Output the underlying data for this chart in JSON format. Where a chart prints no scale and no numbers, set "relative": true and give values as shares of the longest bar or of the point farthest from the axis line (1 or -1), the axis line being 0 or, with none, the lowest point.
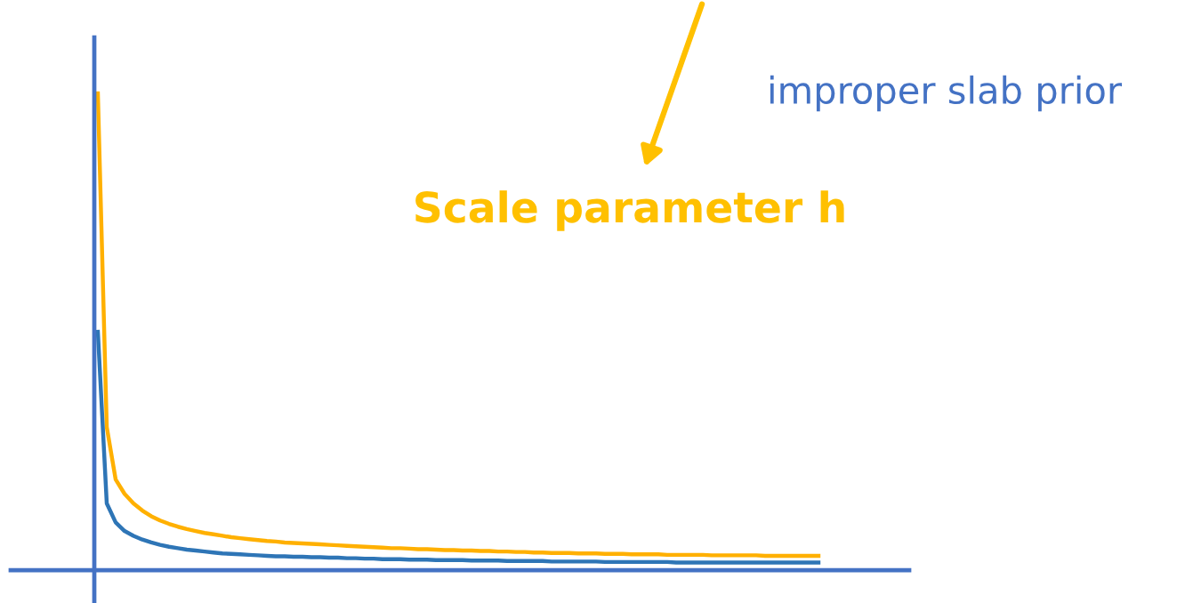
{
  "chart_data": {
    "type": "line",
    "relative": true,
    "categories": [
      null,
      null,
      null,
      null,
      null,
      null,
      null,
      null,
      null,
      null,
      null,
      null,
      null,
      null,
      null,
      null,
      null,
      null,
      null,
      null,
      null,
      null,
      null,
      null,
      null,
      null,
      null,
      null,
      null,
      null,
      null,
      null,
      null,
      null,
      null,
      null,
      null,
      null,
      null,
      null,
      null,
      null,
      null,
      null,
      null,
      null,
      null,
      null,
      null,
      null,
      null,
      null,
      null,
      null,
      null,
      null,
      null,
      null,
      null,
      null,
      null,
      null,
      null,
      null,
      null,
      null,
      null,
      null,
      null,
      null,
      null,
      null,
      null,
      null,
      null,
      null,
      null,
      null,
      null,
      null,
      null,
      null
    ],
    "series": [
      {
        "color": "#ffb000",
        "values": [
          1.0,
          0.3,
          0.19,
          0.16,
          0.14,
          0.125,
          0.113,
          0.104,
          0.097,
          0.091,
          0.086,
          0.082,
          0.078,
          0.075,
          0.072,
          0.069,
          0.067,
          0.065,
          0.063,
          0.061,
          0.06,
          0.058,
          0.057,
          0.056,
          0.055,
          0.054,
          0.053,
          0.052,
          0.051,
          0.05,
          0.049,
          0.048,
          0.047,
          0.046,
          0.046,
          0.045,
          0.044,
          0.044,
          0.043,
          0.042,
          0.042,
          0.041,
          0.041,
          0.04,
          0.04,
          0.039,
          0.039,
          0.038,
          0.038,
          0.037,
          0.037,
          0.036,
          0.036,
          0.036,
          0.035,
          0.035,
          0.035,
          0.034,
          0.034,
          0.034,
          0.033,
          0.033,
          0.033,
          0.033,
          0.032,
          0.032,
          0.032,
          0.032,
          0.032,
          0.031,
          0.031,
          0.031,
          0.031,
          0.031,
          0.031,
          0.03,
          0.03,
          0.03,
          0.03,
          0.03,
          0.03,
          0.03
        ]
      },
      {
        "color": "#2e75b6",
        "values": [
          0.5,
          0.14,
          0.1,
          0.082,
          0.072,
          0.064,
          0.058,
          0.053,
          0.049,
          0.046,
          0.043,
          0.041,
          0.039,
          0.037,
          0.035,
          0.034,
          0.033,
          0.032,
          0.031,
          0.03,
          0.029,
          0.029,
          0.028,
          0.028,
          0.027,
          0.027,
          0.026,
          0.026,
          0.025,
          0.025,
          0.024,
          0.024,
          0.023,
          0.023,
          0.023,
          0.022,
          0.022,
          0.022,
          0.021,
          0.021,
          0.021,
          0.021,
          0.02,
          0.02,
          0.02,
          0.02,
          0.019,
          0.019,
          0.019,
          0.019,
          0.019,
          0.018,
          0.018,
          0.018,
          0.018,
          0.018,
          0.018,
          0.017,
          0.017,
          0.017,
          0.017,
          0.017,
          0.017,
          0.017,
          0.017,
          0.016,
          0.016,
          0.016,
          0.016,
          0.016,
          0.016,
          0.016,
          0.016,
          0.016,
          0.016,
          0.016,
          0.016,
          0.016,
          0.016,
          0.016,
          0.016,
          0.016
        ]
      }
    ],
    "annotations": [
      "improper slab prior",
      "Scale parameter h"
    ]
  }
}
